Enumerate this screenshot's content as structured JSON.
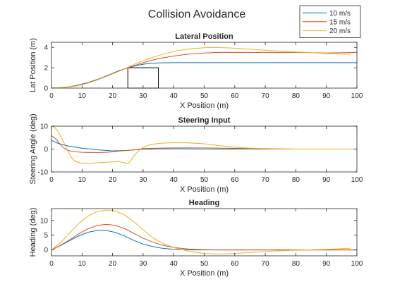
{
  "figure_title": "Collision Avoidance",
  "legend": {
    "placement": "top-right",
    "entries": [
      {
        "name": "10 m/s",
        "color": "#0072BD"
      },
      {
        "name": "15 m/s",
        "color": "#D95319"
      },
      {
        "name": "20 m/s",
        "color": "#EDB120"
      }
    ]
  },
  "chart_data": [
    {
      "type": "line",
      "title": "Lateral Position",
      "xlabel": "X Position (m)",
      "ylabel": "Lat Position (m)",
      "xlim": [
        0,
        100
      ],
      "ylim": [
        0,
        4.5
      ],
      "xticks": [
        0,
        10,
        20,
        30,
        40,
        50,
        60,
        70,
        80,
        90,
        100
      ],
      "yticks": [
        0,
        2,
        4
      ],
      "grid": false,
      "obstacle": {
        "x_from": 25,
        "x_to": 35,
        "y_from": 0,
        "y_to": 2
      },
      "series": [
        {
          "name": "10 m/s",
          "color": "#0072BD",
          "x": [
            0,
            2,
            5,
            8,
            10,
            12,
            15,
            18,
            20,
            22,
            25,
            28,
            30,
            32,
            35,
            40,
            45,
            50,
            60,
            70,
            80,
            90,
            100
          ],
          "y": [
            0,
            0.02,
            0.1,
            0.25,
            0.4,
            0.55,
            0.85,
            1.2,
            1.45,
            1.7,
            2,
            2.22,
            2.35,
            2.42,
            2.48,
            2.5,
            2.5,
            2.5,
            2.5,
            2.5,
            2.5,
            2.5,
            2.5
          ]
        },
        {
          "name": "15 m/s",
          "color": "#D95319",
          "x": [
            0,
            2,
            5,
            8,
            10,
            12,
            15,
            18,
            20,
            22,
            25,
            28,
            30,
            35,
            40,
            45,
            50,
            55,
            60,
            70,
            80,
            90,
            100
          ],
          "y": [
            0,
            0.02,
            0.08,
            0.22,
            0.35,
            0.5,
            0.8,
            1.15,
            1.4,
            1.65,
            2,
            2.3,
            2.5,
            2.9,
            3.15,
            3.35,
            3.45,
            3.5,
            3.5,
            3.5,
            3.5,
            3.45,
            3.5
          ]
        },
        {
          "name": "20 m/s",
          "color": "#EDB120",
          "x": [
            0,
            2,
            5,
            8,
            10,
            12,
            15,
            18,
            20,
            22,
            25,
            28,
            30,
            35,
            40,
            45,
            50,
            53,
            55,
            60,
            65,
            70,
            80,
            90,
            98
          ],
          "y": [
            0,
            0.02,
            0.08,
            0.2,
            0.33,
            0.5,
            0.8,
            1.15,
            1.4,
            1.65,
            2.05,
            2.45,
            2.7,
            3.2,
            3.6,
            3.85,
            3.97,
            4,
            3.98,
            3.92,
            3.82,
            3.72,
            3.55,
            3.4,
            3.3
          ]
        }
      ]
    },
    {
      "type": "line",
      "title": "Steering Input",
      "xlabel": "X Position (m)",
      "ylabel": "Steering Angle (deg)",
      "xlim": [
        0,
        100
      ],
      "ylim": [
        -10,
        10
      ],
      "xticks": [
        0,
        10,
        20,
        30,
        40,
        50,
        60,
        70,
        80,
        90,
        100
      ],
      "yticks": [
        -10,
        0,
        10
      ],
      "grid": false,
      "series": [
        {
          "name": "10 m/s",
          "color": "#0072BD",
          "x": [
            0,
            2,
            4,
            6,
            8,
            10,
            15,
            20,
            25,
            30,
            35,
            40,
            50,
            60,
            70,
            80,
            90,
            100
          ],
          "y": [
            3.8,
            2.6,
            1.8,
            1.2,
            0.8,
            0.4,
            -0.3,
            -0.8,
            -0.6,
            -0.1,
            0.1,
            0.1,
            0,
            0,
            0,
            0,
            0,
            0
          ]
        },
        {
          "name": "15 m/s",
          "color": "#D95319",
          "x": [
            0,
            1,
            2,
            3,
            4,
            5,
            6,
            8,
            10,
            12,
            15,
            18,
            20,
            22,
            25,
            28,
            30,
            35,
            40,
            50,
            60,
            70,
            80,
            90,
            100
          ],
          "y": [
            5.8,
            5,
            3.5,
            1.8,
            0.5,
            -0.3,
            -0.8,
            -1.2,
            -1.4,
            -1.5,
            -1.5,
            -1.4,
            -1.2,
            -0.9,
            -0.6,
            -0.2,
            0.2,
            0.4,
            0.5,
            0.5,
            0.3,
            0.1,
            0,
            0,
            0
          ]
        },
        {
          "name": "20 m/s",
          "color": "#EDB120",
          "x": [
            0,
            1,
            2,
            3,
            4,
            5,
            6,
            7,
            8,
            10,
            12,
            15,
            18,
            20,
            22,
            24,
            25,
            26,
            27,
            28,
            30,
            32,
            35,
            40,
            45,
            50,
            55,
            60,
            65,
            70,
            80,
            90,
            100
          ],
          "y": [
            10,
            9.5,
            8,
            5.5,
            3,
            0,
            -2.5,
            -4.5,
            -5.5,
            -6.3,
            -6.3,
            -6,
            -5.8,
            -5.6,
            -5.5,
            -6,
            -6.5,
            -5,
            -3,
            -1.5,
            0.8,
            1.8,
            2.5,
            2.8,
            2.7,
            2.3,
            1.5,
            0.8,
            0.4,
            0.2,
            0,
            0,
            0
          ]
        }
      ]
    },
    {
      "type": "line",
      "title": "Heading",
      "xlabel": "X Position (m)",
      "ylabel": "Heading (deg)",
      "xlim": [
        0,
        100
      ],
      "ylim": [
        -2,
        14
      ],
      "xticks": [
        0,
        10,
        20,
        30,
        40,
        50,
        60,
        70,
        80,
        90,
        100
      ],
      "yticks": [
        0,
        5,
        10
      ],
      "grid": false,
      "series": [
        {
          "name": "10 m/s",
          "color": "#0072BD",
          "x": [
            0,
            3,
            6,
            9,
            12,
            15,
            18,
            21,
            24,
            27,
            30,
            33,
            36,
            40,
            45,
            50,
            55,
            60,
            70,
            80,
            90,
            100
          ],
          "y": [
            0,
            1.5,
            3.2,
            4.8,
            6,
            6.6,
            6.6,
            5.9,
            4.7,
            3.2,
            2,
            1.2,
            0.6,
            0.2,
            0,
            0,
            0,
            0,
            0,
            0,
            0,
            0
          ]
        },
        {
          "name": "15 m/s",
          "color": "#D95319",
          "x": [
            0,
            3,
            6,
            9,
            12,
            15,
            18,
            21,
            24,
            27,
            30,
            33,
            36,
            40,
            45,
            50,
            55,
            60,
            70,
            80,
            90,
            100
          ],
          "y": [
            0,
            1.6,
            3.5,
            5.5,
            7.2,
            8.3,
            8.7,
            8.3,
            7.2,
            5.6,
            4,
            2.7,
            1.7,
            0.8,
            0.3,
            0.1,
            0,
            0,
            0,
            0,
            0,
            0
          ]
        },
        {
          "name": "20 m/s",
          "color": "#EDB120",
          "x": [
            0,
            3,
            6,
            9,
            12,
            15,
            18,
            21,
            24,
            27,
            30,
            33,
            36,
            40,
            45,
            50,
            55,
            60,
            65,
            70,
            80,
            90,
            98
          ],
          "y": [
            0,
            2.5,
            5.8,
            9,
            11.5,
            13,
            13.5,
            13.2,
            11.8,
            9.5,
            6.8,
            4.3,
            2.5,
            0.8,
            -0.5,
            -1.2,
            -1.4,
            -1.2,
            -0.9,
            -0.5,
            -0.1,
            0.2,
            0.6
          ]
        }
      ]
    }
  ]
}
